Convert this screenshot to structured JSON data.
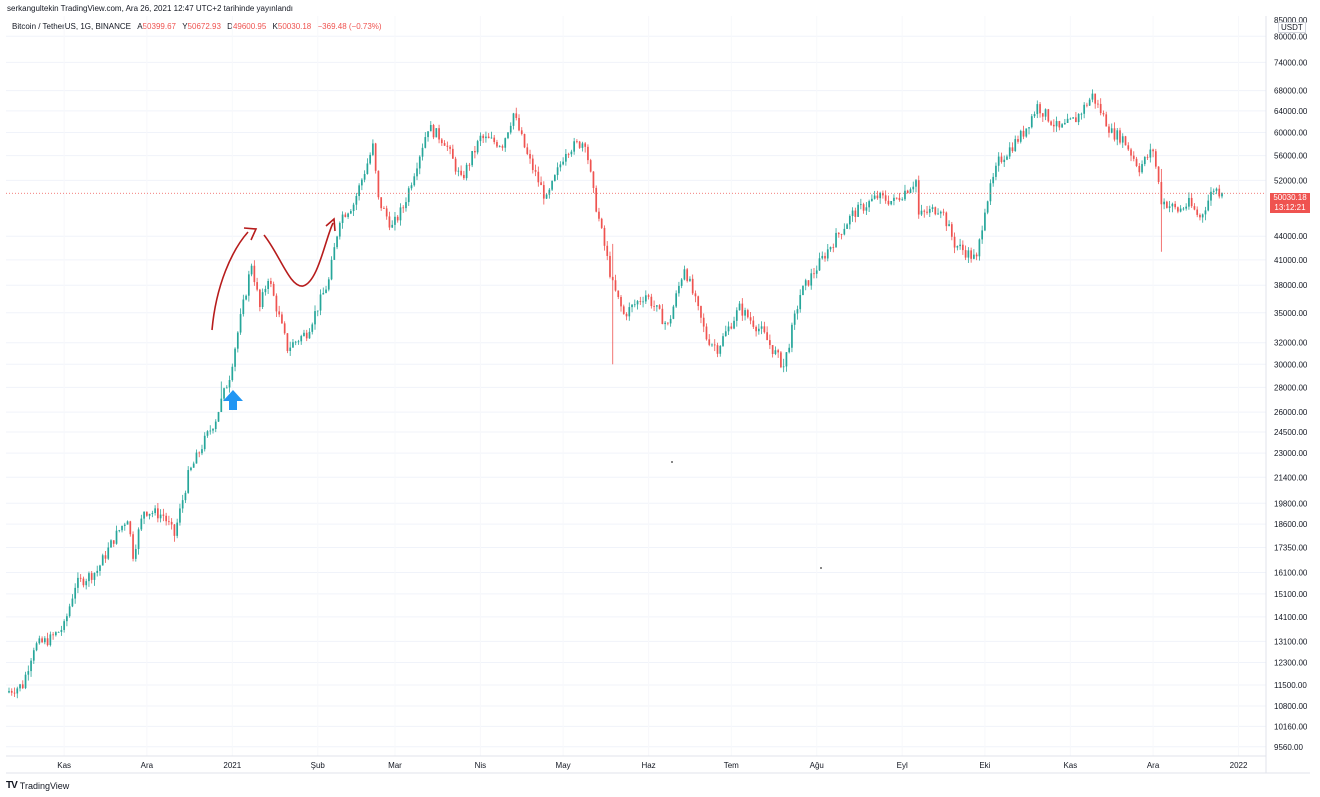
{
  "header": {
    "published": "serkangultekin TradingView.com, Ara 26, 2021 12:47 UTC+2 tarihinde yayınlandı"
  },
  "symbol": {
    "title": "Bitcoin / TetherUS, 1G, BINANCE",
    "open_label": "A",
    "open": "50399.67",
    "high_label": "Y",
    "high": "50672.93",
    "low_label": "D",
    "low": "49600.95",
    "close_label": "K",
    "close": "50030.18",
    "change": "−369.48 (−0.73%)"
  },
  "price_axis": {
    "currency": "USDT",
    "top_cut": "85000.00",
    "ticks": [
      "80000.00",
      "74000.00",
      "68000.00",
      "64000.00",
      "60000.00",
      "56000.00",
      "52000.00",
      "44000.00",
      "41000.00",
      "38000.00",
      "35000.00",
      "32000.00",
      "30000.00",
      "28000.00",
      "26000.00",
      "24500.00",
      "23000.00",
      "21400.00",
      "19800.00",
      "18600.00",
      "17350.00",
      "16100.00",
      "15100.00",
      "14100.00",
      "13100.00",
      "12300.00",
      "11500.00",
      "10800.00",
      "10160.00",
      "9560.00"
    ],
    "last_price": "50030.18",
    "countdown": "13:12:21"
  },
  "time_axis": {
    "labels": [
      "Kas",
      "Ara",
      "2021",
      "Şub",
      "Mar",
      "Nis",
      "May",
      "Haz",
      "Tem",
      "Ağu",
      "Eyl",
      "Eki",
      "Kas",
      "Ara",
      "2022"
    ]
  },
  "footer": {
    "logo": "TV",
    "brand": "TradingView"
  },
  "colors": {
    "up": "#26a69a",
    "down": "#ef5350",
    "annotation_curve": "#b71c1c",
    "annotation_arrow": "#2196f3"
  },
  "chart_data": {
    "type": "candlestick",
    "scale": "log",
    "ylim": [
      9300,
      85000
    ],
    "x_start": "2020-10-12",
    "x_end": "2021-12-26",
    "anchors": [
      [
        "2020-10-12",
        11300
      ],
      [
        "2020-10-17",
        11500
      ],
      [
        "2020-10-21",
        12900
      ],
      [
        "2020-10-27",
        13200
      ],
      [
        "2020-11-01",
        13700
      ],
      [
        "2020-11-05",
        15500
      ],
      [
        "2020-11-13",
        16200
      ],
      [
        "2020-11-19",
        17800
      ],
      [
        "2020-11-24",
        19000
      ],
      [
        "2020-11-26",
        17000
      ],
      [
        "2020-11-30",
        19400
      ],
      [
        "2020-12-07",
        19100
      ],
      [
        "2020-12-11",
        18000
      ],
      [
        "2020-12-16",
        21500
      ],
      [
        "2020-12-21",
        23500
      ],
      [
        "2020-12-26",
        25500
      ],
      [
        "2020-12-31",
        29000
      ],
      [
        "2021-01-03",
        33000
      ],
      [
        "2021-01-08",
        40600
      ],
      [
        "2021-01-11",
        35500
      ],
      [
        "2021-01-14",
        39000
      ],
      [
        "2021-01-21",
        31500
      ],
      [
        "2021-01-28",
        33000
      ],
      [
        "2021-02-05",
        38500
      ],
      [
        "2021-02-09",
        46500
      ],
      [
        "2021-02-14",
        48500
      ],
      [
        "2021-02-21",
        57500
      ],
      [
        "2021-02-23",
        49000
      ],
      [
        "2021-02-28",
        45200
      ],
      [
        "2021-03-04",
        48000
      ],
      [
        "2021-03-13",
        61000
      ],
      [
        "2021-03-19",
        58500
      ],
      [
        "2021-03-25",
        52000
      ],
      [
        "2021-04-01",
        59000
      ],
      [
        "2021-04-09",
        58000
      ],
      [
        "2021-04-13",
        63500
      ],
      [
        "2021-04-18",
        56000
      ],
      [
        "2021-04-25",
        49000
      ],
      [
        "2021-05-02",
        57000
      ],
      [
        "2021-05-09",
        58500
      ],
      [
        "2021-05-12",
        50000
      ],
      [
        "2021-05-19",
        38000
      ],
      [
        "2021-05-23",
        34800
      ],
      [
        "2021-05-31",
        37000
      ],
      [
        "2021-06-08",
        33600
      ],
      [
        "2021-06-14",
        40200
      ],
      [
        "2021-06-22",
        32500
      ],
      [
        "2021-06-26",
        31500
      ],
      [
        "2021-07-04",
        35500
      ],
      [
        "2021-07-12",
        33100
      ],
      [
        "2021-07-20",
        29800
      ],
      [
        "2021-07-26",
        37000
      ],
      [
        "2021-08-06",
        42800
      ],
      [
        "2021-08-14",
        47000
      ],
      [
        "2021-08-23",
        49500
      ],
      [
        "2021-08-29",
        48800
      ],
      [
        "2021-09-06",
        52000
      ],
      [
        "2021-09-07",
        46800
      ],
      [
        "2021-09-15",
        48000
      ],
      [
        "2021-09-20",
        43000
      ],
      [
        "2021-09-28",
        41000
      ],
      [
        "2021-10-01",
        48000
      ],
      [
        "2021-10-06",
        55000
      ],
      [
        "2021-10-15",
        60000
      ],
      [
        "2021-10-20",
        65000
      ],
      [
        "2021-10-28",
        60500
      ],
      [
        "2021-11-03",
        62500
      ],
      [
        "2021-11-09",
        67000
      ],
      [
        "2021-11-16",
        60000
      ],
      [
        "2021-11-20",
        59000
      ],
      [
        "2021-11-26",
        54000
      ],
      [
        "2021-12-01",
        57000
      ],
      [
        "2021-12-04",
        49000
      ],
      [
        "2021-12-10",
        47500
      ],
      [
        "2021-12-14",
        48500
      ],
      [
        "2021-12-18",
        46500
      ],
      [
        "2021-12-23",
        50800
      ],
      [
        "2021-12-26",
        50030
      ]
    ],
    "wicks": [
      [
        "2020-12-28",
        27800,
        27000,
        28500
      ],
      [
        "2021-05-19",
        38000,
        30000,
        43000
      ],
      [
        "2021-07-20",
        29800,
        29300,
        30500
      ],
      [
        "2021-12-04",
        49000,
        42000,
        53800
      ]
    ]
  }
}
